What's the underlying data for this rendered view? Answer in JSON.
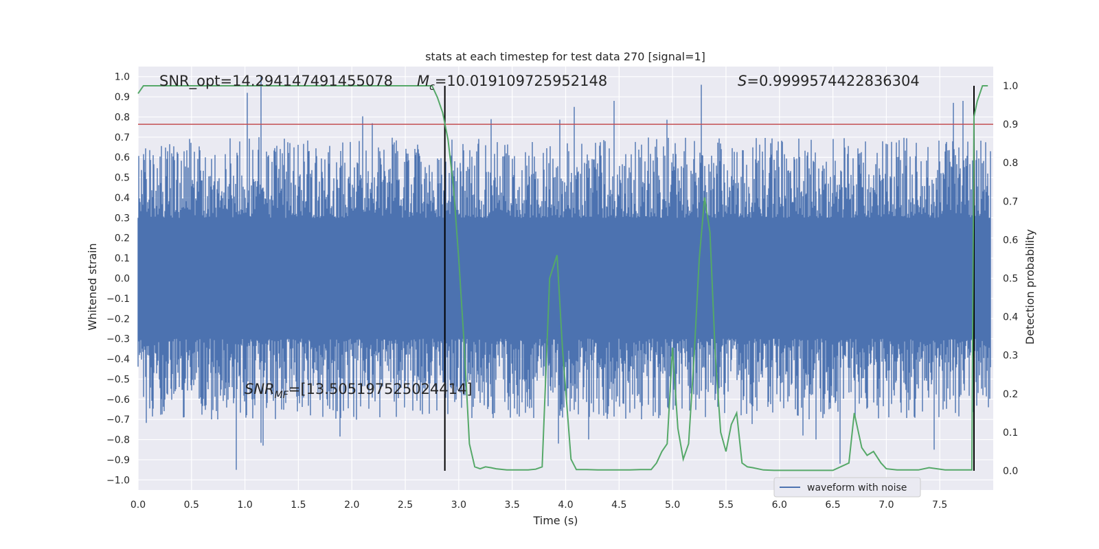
{
  "chart_data": {
    "type": "line",
    "title": "stats at each timestep for test data 270 [signal=1]",
    "xlabel": "Time (s)",
    "ylabel": "Whitened strain",
    "y2label": "Detection probability",
    "xlim": [
      0.0,
      8.0
    ],
    "ylim": [
      -1.05,
      1.05
    ],
    "y2lim": [
      -0.05,
      1.05
    ],
    "x_ticks": [
      "0.0",
      "0.5",
      "1.0",
      "1.5",
      "2.0",
      "2.5",
      "3.0",
      "3.5",
      "4.0",
      "4.5",
      "5.0",
      "5.5",
      "6.0",
      "6.5",
      "7.0",
      "7.5"
    ],
    "y_ticks": [
      "1.0",
      "0.9",
      "0.8",
      "0.7",
      "0.6",
      "0.5",
      "0.4",
      "0.3",
      "0.2",
      "0.1",
      "0.0",
      "-0.1",
      "-0.2",
      "-0.3",
      "-0.4",
      "-0.5",
      "-0.6",
      "-0.7",
      "-0.8",
      "-0.9",
      "-1.0"
    ],
    "y2_ticks": [
      "1.0",
      "0.9",
      "0.8",
      "0.7",
      "0.6",
      "0.5",
      "0.4",
      "0.3",
      "0.2",
      "0.1",
      "0.0"
    ],
    "grid": true,
    "legend": {
      "position": "lower-right",
      "entries": [
        "waveform with noise"
      ]
    },
    "annotations": {
      "snr_opt": "SNR_opt=14.294147491455078",
      "mc_symbol": "M",
      "mc_sub": "c",
      "mc_value": "=10.019109725952148",
      "s_symbol": "S",
      "s_value": "=0.9999574422836304",
      "snr_mf_symbol": "SNR",
      "snr_mf_sub": "MF",
      "snr_mf_value": "=[13.505197525024414]"
    },
    "threshold": {
      "y2": 0.9,
      "color": "#c44e52"
    },
    "vertical_lines_x": [
      2.87,
      7.82
    ],
    "series": [
      {
        "name": "waveform with noise",
        "color": "#4c72b0",
        "envelope": "dense noise, typical |y| 0.3-0.6, peaks to 1.0",
        "peak_points": [
          {
            "x": 0.92,
            "y": -0.95
          },
          {
            "x": 1.02,
            "y": 0.92
          },
          {
            "x": 1.15,
            "y": 1.0
          },
          {
            "x": 1.17,
            "y": -0.83
          },
          {
            "x": 3.93,
            "y": -0.82
          },
          {
            "x": 4.08,
            "y": 0.85
          },
          {
            "x": 4.45,
            "y": 0.88
          },
          {
            "x": 5.27,
            "y": 0.96
          },
          {
            "x": 6.57,
            "y": -0.92
          },
          {
            "x": 7.45,
            "y": -0.85
          },
          {
            "x": 7.63,
            "y": 0.87
          },
          {
            "x": 7.72,
            "y": 0.88
          }
        ]
      },
      {
        "color": "#55a868",
        "axis": "right",
        "x": [
          0.0,
          0.05,
          0.1,
          0.5,
          1.0,
          1.5,
          2.0,
          2.5,
          2.75,
          2.8,
          2.85,
          2.9,
          2.95,
          3.0,
          3.05,
          3.1,
          3.15,
          3.2,
          3.25,
          3.3,
          3.35,
          3.45,
          3.55,
          3.65,
          3.72,
          3.78,
          3.85,
          3.92,
          3.97,
          4.05,
          4.1,
          4.2,
          4.3,
          4.4,
          4.5,
          4.6,
          4.7,
          4.8,
          4.85,
          4.9,
          4.95,
          5.0,
          5.05,
          5.1,
          5.15,
          5.2,
          5.25,
          5.3,
          5.35,
          5.4,
          5.45,
          5.5,
          5.55,
          5.6,
          5.65,
          5.7,
          5.75,
          5.85,
          5.95,
          6.1,
          6.3,
          6.5,
          6.65,
          6.7,
          6.77,
          6.82,
          6.88,
          6.95,
          7.0,
          7.1,
          7.2,
          7.3,
          7.4,
          7.55,
          7.6,
          7.7,
          7.8,
          7.82,
          7.85,
          7.9,
          7.95
        ],
        "values": [
          0.98,
          1.0,
          1.0,
          1.0,
          1.0,
          1.0,
          1.0,
          1.0,
          1.0,
          0.97,
          0.93,
          0.86,
          0.74,
          0.55,
          0.33,
          0.07,
          0.01,
          0.005,
          0.01,
          0.008,
          0.005,
          0.002,
          0.002,
          0.002,
          0.004,
          0.01,
          0.5,
          0.56,
          0.32,
          0.03,
          0.003,
          0.003,
          0.002,
          0.002,
          0.002,
          0.002,
          0.003,
          0.003,
          0.02,
          0.05,
          0.07,
          0.32,
          0.11,
          0.03,
          0.07,
          0.29,
          0.55,
          0.71,
          0.62,
          0.3,
          0.1,
          0.05,
          0.12,
          0.15,
          0.02,
          0.01,
          0.008,
          0.002,
          0.001,
          0.001,
          0.001,
          0.001,
          0.02,
          0.15,
          0.06,
          0.04,
          0.05,
          0.02,
          0.005,
          0.002,
          0.002,
          0.002,
          0.008,
          0.002,
          0.002,
          0.002,
          0.002,
          0.92,
          0.96,
          1.0,
          1.0
        ]
      }
    ]
  }
}
